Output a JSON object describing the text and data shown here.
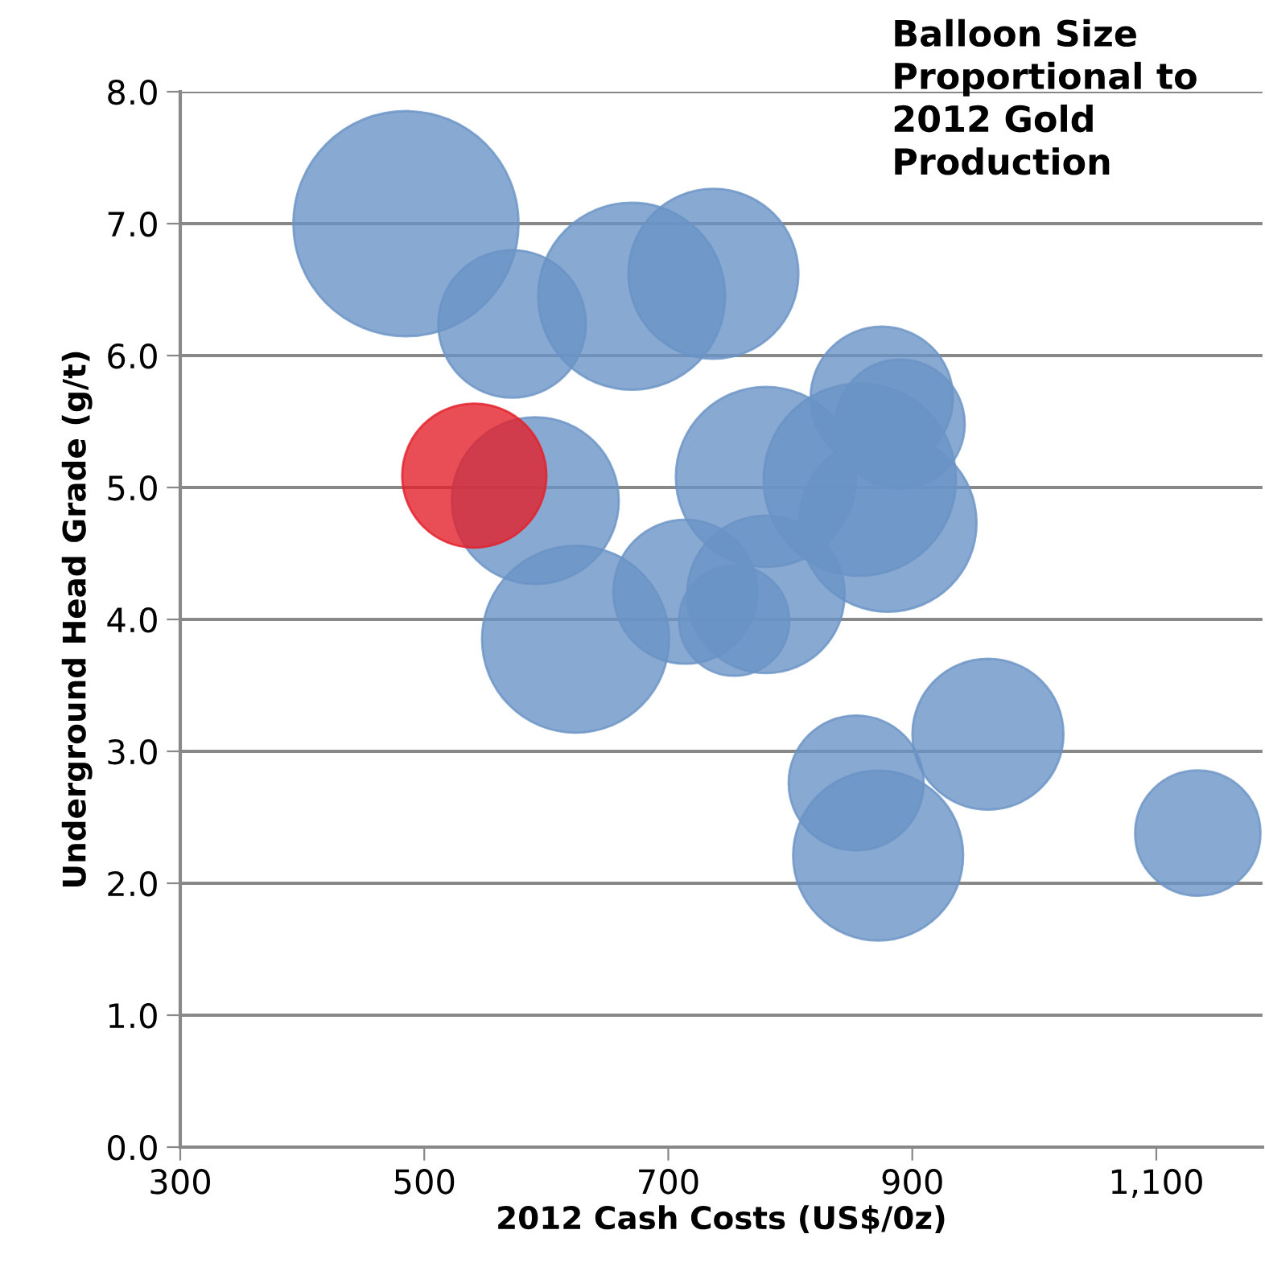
{
  "chart_data": {
    "type": "bubble",
    "xlabel": "2012 Cash Costs (US$/0z)",
    "ylabel": "Underground Head Grade (g/t)",
    "annotations": [
      "Balloon Size Proportional to 2012 Gold Production"
    ],
    "xlim": [
      300,
      1187
    ],
    "xticks": [
      300,
      500,
      700,
      900,
      {
        "value": 1100,
        "label": "1,100"
      }
    ],
    "ylim": [
      0,
      8
    ],
    "yticks": [
      {
        "value": 0,
        "label": "0.0"
      },
      {
        "value": 1,
        "label": "1.0"
      },
      {
        "value": 2,
        "label": "2.0"
      },
      {
        "value": 3,
        "label": "3.0"
      },
      {
        "value": 4,
        "label": "4.0"
      },
      {
        "value": 5,
        "label": "5.0"
      },
      {
        "value": 6,
        "label": "6.0"
      },
      {
        "value": 7,
        "label": "7.0"
      },
      {
        "value": 8,
        "label": "8.0"
      }
    ],
    "grid": "y",
    "legend": false,
    "series": [
      {
        "color": "#6a93c6",
        "x": [
          485,
          572,
          670,
          737,
          591,
          624,
          714,
          780,
          754,
          780,
          857,
          875,
          890,
          880,
          854,
          872,
          962,
          1134
        ],
        "values": [
          7.0,
          6.24,
          6.45,
          6.62,
          4.9,
          3.85,
          4.21,
          4.19,
          3.99,
          5.08,
          5.06,
          5.68,
          5.48,
          4.73,
          2.76,
          2.21,
          3.13,
          2.38
        ],
        "sizes": [
          1,
          0.43,
          0.69,
          0.57,
          0.55,
          0.69,
          0.41,
          0.49,
          0.24,
          0.64,
          0.73,
          0.4,
          0.33,
          0.62,
          0.36,
          0.57,
          0.45,
          0.31
        ]
      },
      {
        "color": "#e3202a",
        "x": [
          541
        ],
        "values": [
          5.09
        ],
        "sizes": [
          0.41
        ]
      }
    ]
  }
}
